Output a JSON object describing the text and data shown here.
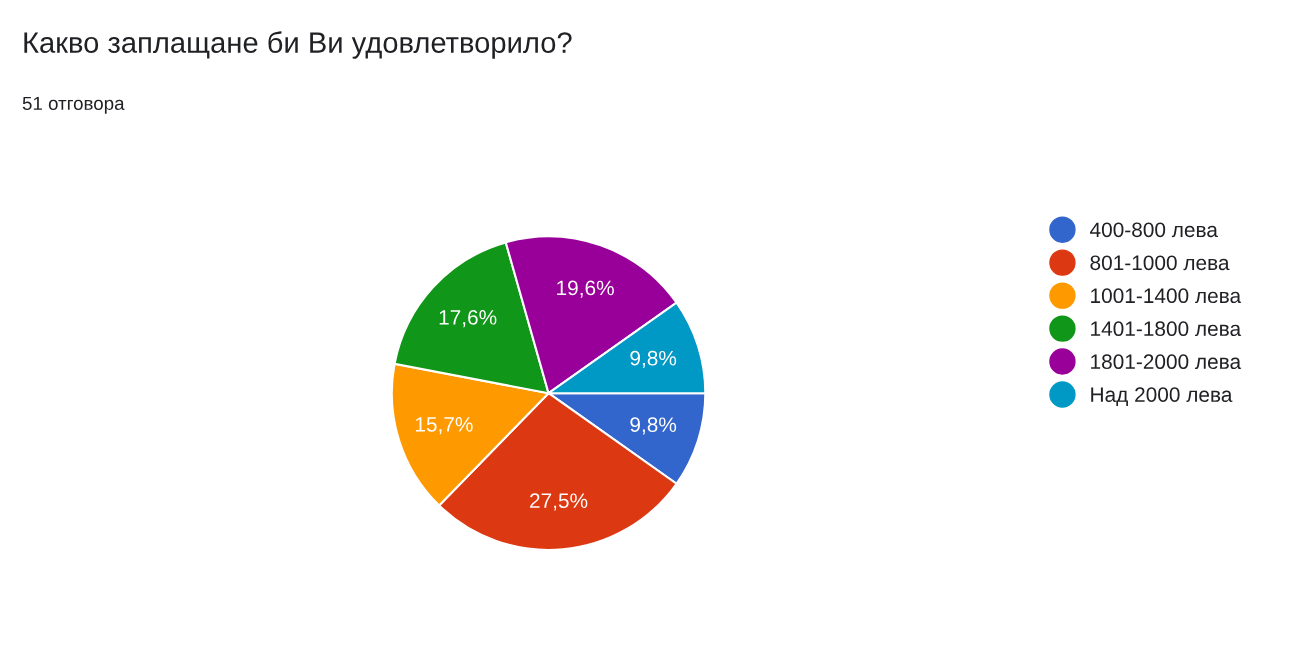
{
  "chart_data": {
    "type": "pie",
    "title": "Какво заплащане би Ви удовлетворило?",
    "subtitle": "51 отговора",
    "categories": [
      "400-800 лева",
      "801-1000 лева",
      "1001-1400 лева",
      "1401-1800 лева",
      "1801-2000 лева",
      "Над 2000 лева"
    ],
    "values": [
      9.8,
      27.5,
      15.7,
      17.6,
      19.6,
      9.8
    ],
    "value_labels": [
      "9,8%",
      "27,5%",
      "15,7%",
      "17,6%",
      "19,6%",
      "9,8%"
    ],
    "colors": [
      "#3366cc",
      "#dc3912",
      "#ff9900",
      "#109618",
      "#990099",
      "#0099c6"
    ],
    "legend": "right"
  }
}
